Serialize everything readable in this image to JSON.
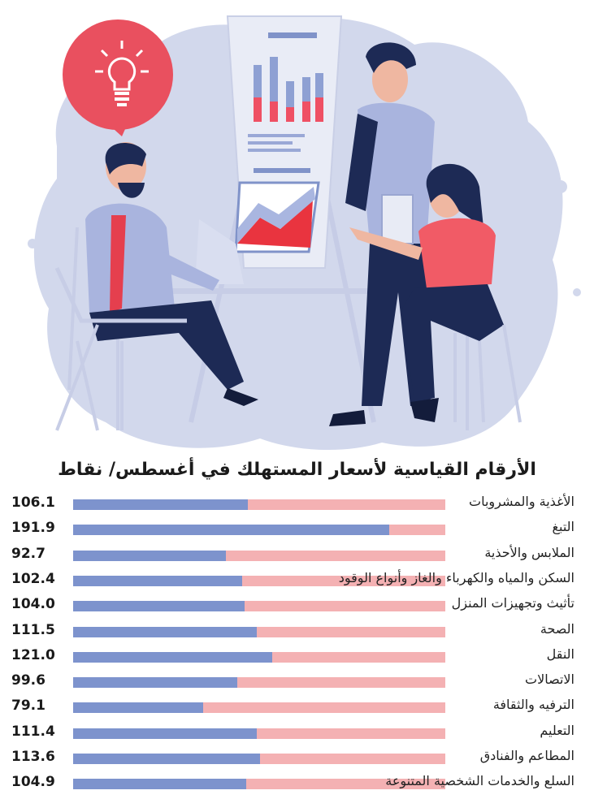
{
  "chart_data": {
    "type": "bar",
    "title": "الأرقام القياسية لأسعار المستهلك في أغسطس/ نقاط",
    "categories": [
      "الأغذية والمشروبات",
      "التبغ",
      "الملابس والأحذية",
      "السكن والمياه والكهرباء والغاز وأنواع الوقود",
      "تأثيث وتجهيزات المنزل",
      "الصحة",
      "النقل",
      "الاتصالات",
      "الترفيه والثقافة",
      "التعليم",
      "المطاعم والفنادق",
      "السلع والخدمات الشخصية المتنوعة"
    ],
    "values": [
      106.1,
      191.9,
      92.7,
      102.4,
      104.0,
      111.5,
      121.0,
      99.6,
      79.1,
      111.4,
      113.6,
      104.9
    ],
    "value_labels": [
      "106.1",
      "191.9",
      "92.7",
      "102.4",
      "104.0",
      "111.5",
      "121.0",
      "99.6",
      "79.1",
      "111.4",
      "113.6",
      "104.9"
    ],
    "xlim": [
      0,
      226
    ],
    "orientation": "horizontal",
    "colors": {
      "fill": "#7d93cd",
      "track": "#f4b1b3"
    }
  }
}
